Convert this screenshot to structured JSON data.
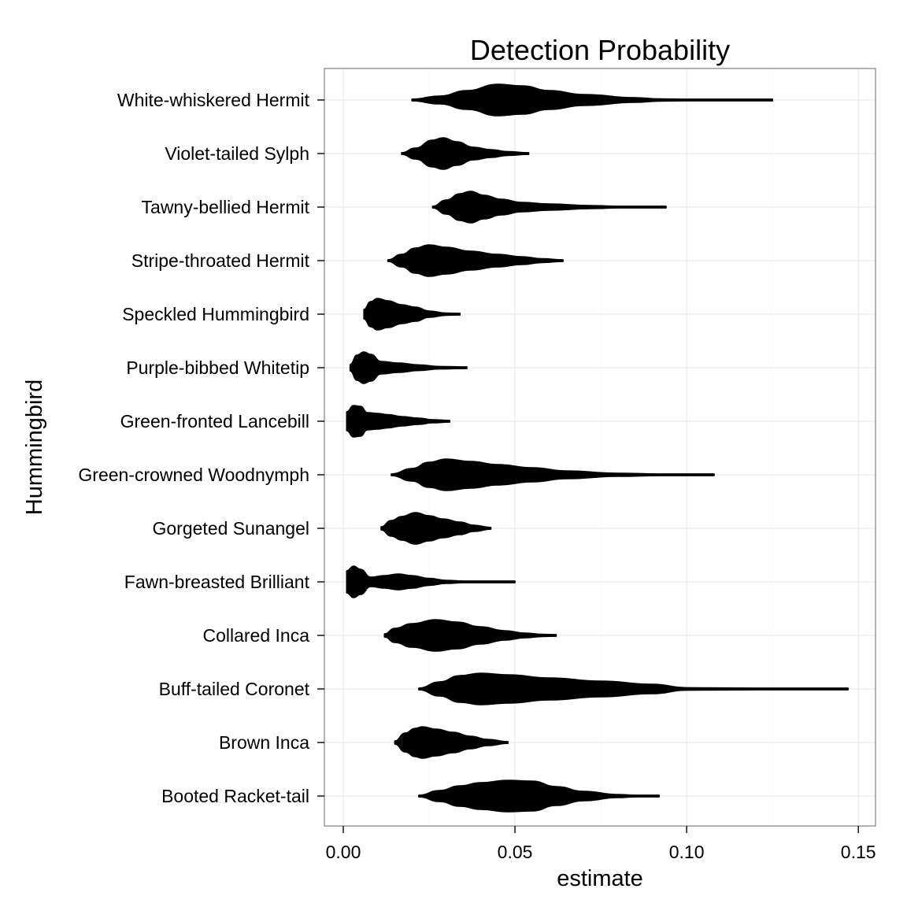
{
  "chart_data": {
    "type": "violin",
    "title": "Detection Probability",
    "xlabel": "estimate",
    "ylabel": "Hummingbird",
    "orientation": "horizontal",
    "xlim": [
      -0.0055,
      0.155
    ],
    "x_ticks": [
      0.0,
      0.05,
      0.1,
      0.15
    ],
    "x_tick_labels": [
      "0.00",
      "0.05",
      "0.10",
      "0.15"
    ],
    "grid": true,
    "legend": "none",
    "fill_color": "#000000",
    "grid_color": "#ebebeb",
    "series": [
      {
        "category": "White-whiskered Hermit",
        "min": 0.02,
        "max": 0.125,
        "profile": [
          [
            0.02,
            0.05
          ],
          [
            0.028,
            0.25
          ],
          [
            0.036,
            0.6
          ],
          [
            0.045,
            1.0
          ],
          [
            0.052,
            0.9
          ],
          [
            0.06,
            0.6
          ],
          [
            0.07,
            0.35
          ],
          [
            0.085,
            0.15
          ],
          [
            0.092,
            0.07
          ],
          [
            0.1,
            0.04
          ],
          [
            0.125,
            0.02
          ]
        ]
      },
      {
        "category": "Violet-tailed Sylph",
        "min": 0.017,
        "max": 0.054,
        "profile": [
          [
            0.017,
            0.05
          ],
          [
            0.021,
            0.35
          ],
          [
            0.026,
            0.85
          ],
          [
            0.029,
            1.0
          ],
          [
            0.033,
            0.75
          ],
          [
            0.038,
            0.4
          ],
          [
            0.043,
            0.25
          ],
          [
            0.048,
            0.12
          ],
          [
            0.054,
            0.03
          ]
        ]
      },
      {
        "category": "Tawny-bellied Hermit",
        "min": 0.026,
        "max": 0.094,
        "profile": [
          [
            0.026,
            0.05
          ],
          [
            0.03,
            0.45
          ],
          [
            0.034,
            0.85
          ],
          [
            0.037,
            1.0
          ],
          [
            0.041,
            0.75
          ],
          [
            0.046,
            0.5
          ],
          [
            0.052,
            0.3
          ],
          [
            0.06,
            0.2
          ],
          [
            0.072,
            0.1
          ],
          [
            0.08,
            0.05
          ],
          [
            0.094,
            0.02
          ]
        ]
      },
      {
        "category": "Stripe-throated Hermit",
        "min": 0.013,
        "max": 0.064,
        "profile": [
          [
            0.013,
            0.05
          ],
          [
            0.017,
            0.4
          ],
          [
            0.021,
            0.8
          ],
          [
            0.025,
            1.0
          ],
          [
            0.03,
            0.85
          ],
          [
            0.037,
            0.6
          ],
          [
            0.045,
            0.4
          ],
          [
            0.052,
            0.25
          ],
          [
            0.058,
            0.12
          ],
          [
            0.064,
            0.03
          ]
        ]
      },
      {
        "category": "Speckled Hummingbird",
        "min": 0.006,
        "max": 0.034,
        "profile": [
          [
            0.006,
            0.3
          ],
          [
            0.008,
            0.8
          ],
          [
            0.01,
            1.0
          ],
          [
            0.013,
            0.85
          ],
          [
            0.017,
            0.6
          ],
          [
            0.021,
            0.45
          ],
          [
            0.025,
            0.2
          ],
          [
            0.03,
            0.07
          ],
          [
            0.034,
            0.02
          ]
        ]
      },
      {
        "category": "Purple-bibbed Whitetip",
        "min": 0.002,
        "max": 0.036,
        "profile": [
          [
            0.002,
            0.2
          ],
          [
            0.004,
            0.8
          ],
          [
            0.006,
            1.0
          ],
          [
            0.008,
            0.85
          ],
          [
            0.011,
            0.4
          ],
          [
            0.016,
            0.3
          ],
          [
            0.022,
            0.18
          ],
          [
            0.028,
            0.08
          ],
          [
            0.036,
            0.02
          ]
        ]
      },
      {
        "category": "Green-fronted Lancebill",
        "min": 0.001,
        "max": 0.031,
        "profile": [
          [
            0.001,
            0.6
          ],
          [
            0.003,
            1.0
          ],
          [
            0.005,
            0.95
          ],
          [
            0.007,
            0.55
          ],
          [
            0.01,
            0.5
          ],
          [
            0.013,
            0.42
          ],
          [
            0.017,
            0.3
          ],
          [
            0.022,
            0.2
          ],
          [
            0.026,
            0.1
          ],
          [
            0.031,
            0.02
          ]
        ]
      },
      {
        "category": "Green-crowned Woodnymph",
        "min": 0.014,
        "max": 0.108,
        "profile": [
          [
            0.014,
            0.05
          ],
          [
            0.02,
            0.4
          ],
          [
            0.025,
            0.8
          ],
          [
            0.03,
            1.0
          ],
          [
            0.037,
            0.85
          ],
          [
            0.045,
            0.65
          ],
          [
            0.055,
            0.45
          ],
          [
            0.065,
            0.25
          ],
          [
            0.08,
            0.1
          ],
          [
            0.092,
            0.04
          ],
          [
            0.108,
            0.02
          ]
        ]
      },
      {
        "category": "Gorgeted Sunangel",
        "min": 0.011,
        "max": 0.043,
        "profile": [
          [
            0.011,
            0.1
          ],
          [
            0.014,
            0.5
          ],
          [
            0.017,
            0.75
          ],
          [
            0.021,
            1.0
          ],
          [
            0.025,
            0.8
          ],
          [
            0.029,
            0.6
          ],
          [
            0.034,
            0.4
          ],
          [
            0.038,
            0.2
          ],
          [
            0.043,
            0.05
          ]
        ]
      },
      {
        "category": "Fawn-breasted Brilliant",
        "min": 0.001,
        "max": 0.05,
        "profile": [
          [
            0.001,
            0.7
          ],
          [
            0.003,
            1.0
          ],
          [
            0.005,
            0.8
          ],
          [
            0.008,
            0.3
          ],
          [
            0.012,
            0.4
          ],
          [
            0.016,
            0.5
          ],
          [
            0.02,
            0.4
          ],
          [
            0.025,
            0.22
          ],
          [
            0.03,
            0.1
          ],
          [
            0.035,
            0.05
          ],
          [
            0.05,
            0.03
          ]
        ]
      },
      {
        "category": "Collared Inca",
        "min": 0.012,
        "max": 0.062,
        "profile": [
          [
            0.012,
            0.1
          ],
          [
            0.015,
            0.45
          ],
          [
            0.02,
            0.75
          ],
          [
            0.027,
            1.0
          ],
          [
            0.033,
            0.85
          ],
          [
            0.04,
            0.55
          ],
          [
            0.047,
            0.3
          ],
          [
            0.053,
            0.15
          ],
          [
            0.058,
            0.07
          ],
          [
            0.062,
            0.02
          ]
        ]
      },
      {
        "category": "Buff-tailed Coronet",
        "min": 0.022,
        "max": 0.147,
        "profile": [
          [
            0.022,
            0.05
          ],
          [
            0.028,
            0.45
          ],
          [
            0.034,
            0.85
          ],
          [
            0.04,
            1.0
          ],
          [
            0.048,
            0.9
          ],
          [
            0.06,
            0.7
          ],
          [
            0.075,
            0.5
          ],
          [
            0.09,
            0.3
          ],
          [
            0.1,
            0.08
          ],
          [
            0.12,
            0.05
          ],
          [
            0.147,
            0.03
          ]
        ]
      },
      {
        "category": "Brown Inca",
        "min": 0.015,
        "max": 0.048,
        "profile": [
          [
            0.015,
            0.1
          ],
          [
            0.018,
            0.6
          ],
          [
            0.021,
            0.9
          ],
          [
            0.023,
            1.0
          ],
          [
            0.027,
            0.85
          ],
          [
            0.032,
            0.65
          ],
          [
            0.037,
            0.4
          ],
          [
            0.042,
            0.2
          ],
          [
            0.048,
            0.04
          ]
        ]
      },
      {
        "category": "Booted Racket-tail",
        "min": 0.022,
        "max": 0.092,
        "profile": [
          [
            0.022,
            0.05
          ],
          [
            0.028,
            0.35
          ],
          [
            0.034,
            0.65
          ],
          [
            0.04,
            0.85
          ],
          [
            0.048,
            1.0
          ],
          [
            0.055,
            0.95
          ],
          [
            0.062,
            0.6
          ],
          [
            0.07,
            0.3
          ],
          [
            0.08,
            0.1
          ],
          [
            0.085,
            0.05
          ],
          [
            0.092,
            0.02
          ]
        ]
      }
    ]
  }
}
